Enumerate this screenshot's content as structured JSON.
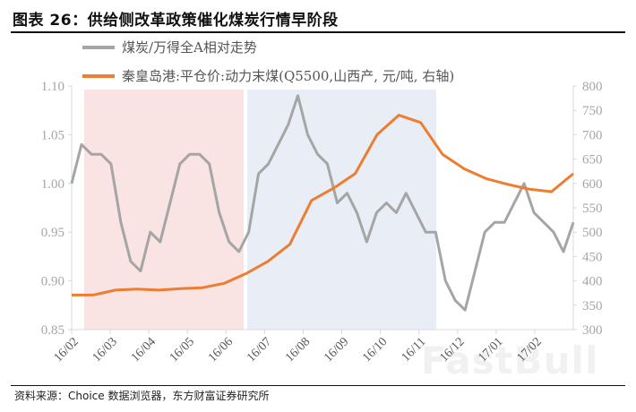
{
  "header": {
    "title": "图表 26：供给侧改革政策催化煤炭行情早阶段"
  },
  "legend": [
    {
      "label": "煤炭/万得全A相对走势",
      "color": "#a5a5a5"
    },
    {
      "label": "秦皇岛港:平仓价:动力末煤(Q5500,山西产, 元/吨, 右轴)",
      "color": "#ed7d31"
    }
  ],
  "footer": {
    "source": "资料来源：Choice 数据浏览器，东方财富证券研究所"
  },
  "watermark": "FastBull",
  "chart_data": {
    "type": "line",
    "title": "供给侧改革政策催化煤炭行情早阶段",
    "x_tick_labels": [
      "16/02",
      "16/03",
      "16/04",
      "16/05",
      "16/06",
      "16/07",
      "16/08",
      "16/09",
      "16/10",
      "16/11",
      "16/12",
      "17/01",
      "17/02"
    ],
    "left_axis": {
      "ticks": [
        "1.10",
        "1.05",
        "1.00",
        "0.95",
        "0.90",
        "0.85"
      ],
      "ylim": [
        0.85,
        1.1
      ]
    },
    "right_axis": {
      "ticks": [
        "800",
        "750",
        "700",
        "650",
        "600",
        "550",
        "500",
        "450",
        "400",
        "350",
        "300"
      ],
      "ylim": [
        300,
        800
      ]
    },
    "shaded_regions": [
      {
        "name": "pink-phase",
        "from": "16/02 (mid)",
        "to": "16/06 (late)",
        "color": "#f9e3e3"
      },
      {
        "name": "blue-phase",
        "from": "16/07",
        "to": "16/11 (mid)",
        "color": "#e9eef6"
      }
    ],
    "series": [
      {
        "name": "煤炭/万得全A相对走势",
        "axis": "left",
        "color": "#a5a5a5",
        "x": [
          "16/02",
          "16/02",
          "16/02",
          "16/02",
          "16/03",
          "16/03",
          "16/03",
          "16/03",
          "16/03",
          "16/04",
          "16/04",
          "16/04",
          "16/04",
          "16/04",
          "16/05",
          "16/05",
          "16/05",
          "16/05",
          "16/05",
          "16/06",
          "16/06",
          "16/06",
          "16/06",
          "16/06",
          "16/07",
          "16/07",
          "16/07",
          "16/07",
          "16/08",
          "16/08",
          "16/08",
          "16/08",
          "16/09",
          "16/09",
          "16/09",
          "16/10",
          "16/10",
          "16/10",
          "16/11",
          "16/11",
          "16/11",
          "16/11",
          "16/12",
          "16/12",
          "16/12",
          "17/01",
          "17/01",
          "17/01",
          "17/02",
          "17/02",
          "17/02",
          "17/02"
        ],
        "values": [
          1.0,
          1.04,
          1.03,
          1.03,
          1.02,
          0.96,
          0.92,
          0.91,
          0.95,
          0.94,
          0.98,
          1.02,
          1.03,
          1.03,
          1.02,
          0.97,
          0.94,
          0.93,
          0.95,
          1.01,
          1.02,
          1.04,
          1.06,
          1.09,
          1.05,
          1.03,
          1.02,
          0.98,
          0.99,
          0.97,
          0.94,
          0.97,
          0.98,
          0.97,
          0.99,
          0.97,
          0.95,
          0.95,
          0.9,
          0.88,
          0.87,
          0.91,
          0.95,
          0.96,
          0.96,
          0.98,
          1.0,
          0.97,
          0.96,
          0.95,
          0.93,
          0.96
        ]
      },
      {
        "name": "秦皇岛港:平仓价:动力末煤(Q5500,山西产)",
        "axis": "right",
        "unit": "元/吨",
        "color": "#ed7d31",
        "x": [
          "16/02",
          "16/03",
          "16/03",
          "16/04",
          "16/05",
          "16/06",
          "16/07",
          "16/07",
          "16/08",
          "16/08",
          "16/09",
          "16/09",
          "16/10",
          "16/10",
          "16/11",
          "16/11",
          "16/11",
          "16/12",
          "16/12",
          "17/01",
          "17/01",
          "17/02",
          "17/02",
          "17/02"
        ],
        "values": [
          371,
          371,
          381,
          383,
          381,
          384,
          386,
          395,
          415,
          440,
          475,
          565,
          590,
          620,
          700,
          740,
          725,
          660,
          630,
          610,
          598,
          588,
          583,
          620
        ]
      }
    ]
  }
}
